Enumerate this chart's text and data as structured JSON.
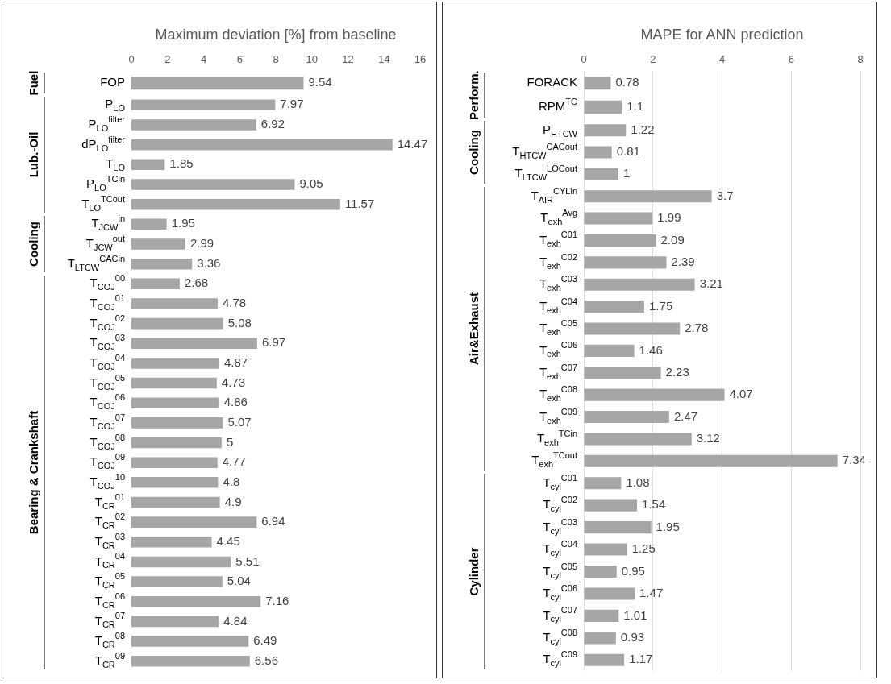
{
  "chart_data": [
    {
      "type": "bar",
      "orientation": "horizontal",
      "title": "Maximum deviation [%] from baseline",
      "ylabel": "Fuel",
      "color": "#a6a6a6",
      "grid": false,
      "legend": false,
      "data_labels": true,
      "categories": [
        "FOP"
      ],
      "values": [
        9.54
      ],
      "xlim": [
        0,
        16
      ],
      "xticks": [
        0,
        2,
        4,
        6,
        8,
        10,
        12,
        14,
        16
      ]
    },
    {
      "type": "bar",
      "orientation": "horizontal",
      "ylabel": "Lub.-Oil",
      "color": "#a6a6a6",
      "grid": false,
      "legend": false,
      "data_labels": true,
      "tick_labels": "y",
      "categories": [
        "P$_{LO}$",
        "P$_{LO}$$^{filter}$",
        "dP$_{LO}$$^{filter}$",
        "T$_{LO}$",
        "P$_{LO}$$^{TCin}$",
        "T$_{LO}$$^{TCout}$"
      ],
      "values": [
        7.97,
        6.92,
        14.47,
        1.85,
        9.05,
        11.57
      ],
      "xlim": [
        0,
        16
      ],
      "xticks": [
        0,
        2,
        4,
        6,
        8,
        10,
        12,
        14,
        16
      ]
    },
    {
      "type": "bar",
      "orientation": "horizontal",
      "ylabel": "Cooling",
      "color": "#a6a6a6",
      "grid": false,
      "legend": false,
      "data_labels": true,
      "tick_labels": "y",
      "categories": [
        "T$_{JCW}$$^{in}$",
        "T$_{JCW}$$^{out}$",
        "T$_{LTCW}$$^{CACin}$"
      ],
      "values": [
        1.95,
        2.99,
        3.36
      ],
      "xlim": [
        0,
        16
      ],
      "xticks": [
        0,
        2,
        4,
        6,
        8,
        10,
        12,
        14,
        16
      ]
    },
    {
      "type": "bar",
      "orientation": "horizontal",
      "ylabel": "Bearing & Crankshaft",
      "color": "#a6a6a6",
      "grid": false,
      "legend": false,
      "data_labels": true,
      "tick_labels": "y",
      "categories": [
        "T$_{COJ}$$^{00}$",
        "T$_{COJ}$$^{01}$",
        "T$_{COJ}$$^{02}$",
        "T$_{COJ}$$^{03}$",
        "T$_{COJ}$$^{04}$",
        "T$_{COJ}$$^{05}$",
        "T$_{COJ}$$^{06}$",
        "T$_{COJ}$$^{07}$",
        "T$_{COJ}$$^{08}$",
        "T$_{COJ}$$^{09}$",
        "T$_{COJ}$$^{10}$",
        "T$_{CR}$$^{01}$",
        "T$_{CR}$$^{02}$",
        "T$_{CR}$$^{03}$",
        "T$_{CR}$$^{04}$",
        "T$_{CR}$$^{05}$",
        "T$_{CR}$$^{06}$",
        "T$_{CR}$$^{07}$",
        "T$_{CR}$$^{08}$",
        "T$_{CR}$$^{09}$"
      ],
      "values": [
        2.68,
        4.78,
        5.08,
        6.97,
        4.87,
        4.73,
        4.86,
        5.07,
        5,
        4.77,
        4.8,
        4.9,
        6.94,
        4.45,
        5.51,
        5.04,
        7.16,
        4.84,
        6.49,
        6.56
      ],
      "xlim": [
        0,
        16
      ],
      "xticks": [
        0,
        2,
        4,
        6,
        8,
        10,
        12,
        14,
        16
      ]
    },
    {
      "type": "bar",
      "orientation": "horizontal",
      "title": "MAPE for ANN prediction",
      "ylabel": "Perform.",
      "color": "#a6a6a6",
      "grid": "x",
      "legend": false,
      "data_labels": true,
      "categories": [
        "FORACK",
        "RPM$^{TC}$"
      ],
      "values": [
        0.78,
        1.1
      ],
      "xlim": [
        0,
        8
      ],
      "xticks": [
        0,
        2,
        4,
        6,
        8
      ]
    },
    {
      "type": "bar",
      "orientation": "horizontal",
      "ylabel": "Cooling",
      "color": "#a6a6a6",
      "grid": "x",
      "legend": false,
      "data_labels": true,
      "tick_labels": "y",
      "categories": [
        "P$_{HTCW}$",
        "T$_{HTCW}$$^{CACout}$",
        "T$_{LTCW}$$^{LOCout}$"
      ],
      "values": [
        1.22,
        0.81,
        1
      ],
      "xlim": [
        0,
        8
      ],
      "xticks": [
        0,
        2,
        4,
        6,
        8
      ]
    },
    {
      "type": "bar",
      "orientation": "horizontal",
      "ylabel": "Air&Exhaust",
      "color": "#a6a6a6",
      "grid": "x",
      "legend": false,
      "data_labels": true,
      "tick_labels": "y",
      "categories": [
        "T$_{AIR}$$^{CYLin}$",
        "T$_{exh}$$^{Avg}$",
        "T$_{exh}$$^{C01}$",
        "T$_{exh}$$^{C02}$",
        "T$_{exh}$$^{C03}$",
        "T$_{exh}$$^{C04}$",
        "T$_{exh}$$^{C05}$",
        "T$_{exh}$$^{C06}$",
        "T$_{exh}$$^{C07}$",
        "T$_{exh}$$^{C08}$",
        "T$_{exh}$$^{C09}$",
        "T$_{exh}$$^{TCin}$",
        "T$_{exh}$$^{TCout}$"
      ],
      "values": [
        3.7,
        1.99,
        2.09,
        2.39,
        3.21,
        1.75,
        2.78,
        1.46,
        2.23,
        4.07,
        2.47,
        3.12,
        7.34
      ],
      "xlim": [
        0,
        8
      ],
      "xticks": [
        0,
        2,
        4,
        6,
        8
      ]
    },
    {
      "type": "bar",
      "orientation": "horizontal",
      "ylabel": "Cylinder",
      "color": "#a6a6a6",
      "grid": "x",
      "legend": false,
      "data_labels": true,
      "tick_labels": "y",
      "categories": [
        "T$_{cyl}$$^{C01}$",
        "T$_{cyl}$$^{C02}$",
        "T$_{cyl}$$^{C03}$",
        "T$_{cyl}$$^{C04}$",
        "T$_{cyl}$$^{C05}$",
        "T$_{cyl}$$^{C06}$",
        "T$_{cyl}$$^{C07}$",
        "T$_{cyl}$$^{C08}$",
        "T$_{cyl}$$^{C09}$"
      ],
      "values": [
        1.08,
        1.54,
        1.95,
        1.25,
        0.95,
        1.47,
        1.01,
        0.93,
        1.17
      ],
      "xlim": [
        0,
        8
      ],
      "xticks": [
        0,
        2,
        4,
        6,
        8
      ]
    }
  ]
}
